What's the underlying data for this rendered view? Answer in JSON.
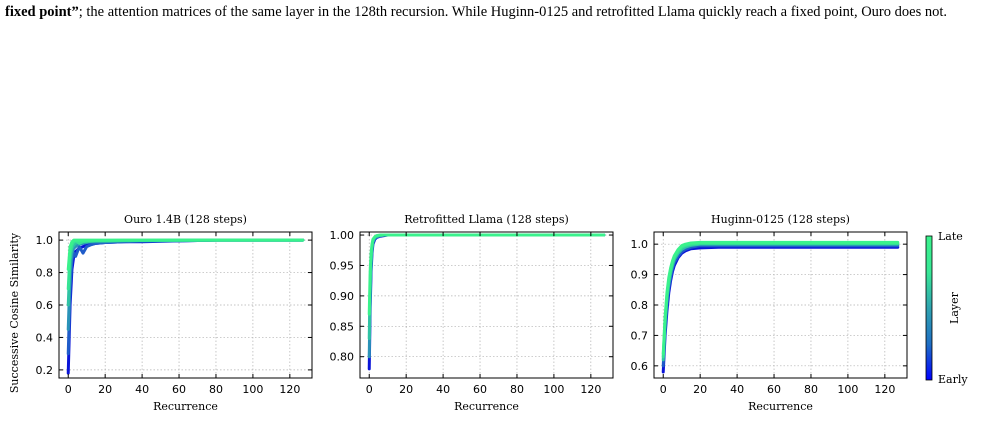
{
  "caption": {
    "bold_lead": "fixed point”",
    "text": "; the attention matrices of the same layer in the 128th recursion. While Huginn-0125 and retrofitted Llama quickly reach a fixed point, Ouro does not."
  },
  "chart_data": [
    {
      "type": "line",
      "title": "Ouro 1.4B (128 steps)",
      "xlabel": "Recurrence",
      "ylabel": "Successive Cosine Similarity",
      "xlim": [
        -5,
        132
      ],
      "ylim": [
        0.15,
        1.05
      ],
      "xticks": [
        0,
        20,
        40,
        60,
        80,
        100,
        120
      ],
      "yticks": [
        0.2,
        0.4,
        0.6,
        0.8,
        1.0
      ],
      "ytick_labels": [
        "0.2",
        "0.4",
        "0.6",
        "0.8",
        "1.0"
      ],
      "grid": true,
      "x": [
        0,
        1,
        2,
        3,
        4,
        5,
        6,
        8,
        10,
        12,
        15,
        20,
        30,
        40,
        60,
        80,
        100,
        127
      ],
      "series": [
        {
          "values": [
            0.18,
            0.6,
            0.82,
            0.9,
            0.93,
            0.94,
            0.95,
            0.96,
            0.97,
            0.975,
            0.98,
            0.985,
            0.99,
            0.99,
            0.995,
            1.0,
            1.0,
            1.0
          ]
        },
        {
          "values": [
            0.3,
            0.7,
            0.88,
            0.92,
            0.9,
            0.93,
            0.96,
            0.92,
            0.96,
            0.97,
            0.98,
            0.985,
            0.99,
            0.995,
            0.995,
            1.0,
            1.0,
            1.0
          ]
        },
        {
          "values": [
            0.45,
            0.8,
            0.92,
            0.95,
            0.96,
            0.97,
            0.975,
            0.98,
            0.985,
            0.99,
            0.99,
            0.99,
            0.995,
            0.995,
            0.998,
            1.0,
            1.0,
            1.0
          ]
        },
        {
          "values": [
            0.6,
            0.88,
            0.95,
            0.97,
            0.98,
            0.985,
            0.99,
            0.99,
            0.99,
            0.992,
            0.995,
            0.995,
            0.997,
            0.998,
            0.999,
            1.0,
            1.0,
            1.0
          ]
        },
        {
          "values": [
            0.7,
            0.92,
            0.97,
            0.99,
            0.995,
            0.99,
            0.98,
            0.99,
            0.995,
            0.995,
            0.997,
            0.998,
            0.999,
            0.999,
            1.0,
            1.0,
            1.0,
            1.0
          ]
        },
        {
          "values": [
            0.82,
            0.96,
            0.99,
            1.0,
            1.0,
            1.0,
            1.0,
            1.0,
            1.0,
            1.0,
            1.0,
            1.0,
            1.0,
            1.0,
            1.0,
            1.0,
            1.0,
            1.0
          ]
        }
      ]
    },
    {
      "type": "line",
      "title": "Retrofitted Llama (128 steps)",
      "xlabel": "Recurrence",
      "ylabel": "",
      "xlim": [
        -5,
        132
      ],
      "ylim": [
        0.765,
        1.005
      ],
      "xticks": [
        0,
        20,
        40,
        60,
        80,
        100,
        120
      ],
      "yticks": [
        0.8,
        0.85,
        0.9,
        0.95,
        1.0
      ],
      "ytick_labels": [
        "0.80",
        "0.85",
        "0.90",
        "0.95",
        "1.00"
      ],
      "grid": true,
      "x": [
        0,
        0.5,
        1,
        1.5,
        2,
        3,
        4,
        6,
        8,
        10,
        20,
        60,
        127
      ],
      "series": [
        {
          "values": [
            0.78,
            0.88,
            0.94,
            0.97,
            0.985,
            0.993,
            0.996,
            0.998,
            0.999,
            1.0,
            1.0,
            1.0,
            1.0
          ]
        },
        {
          "values": [
            0.8,
            0.9,
            0.95,
            0.975,
            0.988,
            0.995,
            0.997,
            0.999,
            1.0,
            1.0,
            1.0,
            1.0,
            1.0
          ]
        },
        {
          "values": [
            0.83,
            0.92,
            0.96,
            0.98,
            0.99,
            0.996,
            0.998,
            0.999,
            1.0,
            1.0,
            1.0,
            1.0,
            1.0
          ]
        },
        {
          "values": [
            0.87,
            0.94,
            0.97,
            0.985,
            0.993,
            0.997,
            0.999,
            1.0,
            1.0,
            1.0,
            1.0,
            1.0,
            1.0
          ]
        }
      ]
    },
    {
      "type": "line",
      "title": "Huginn-0125 (128 steps)",
      "xlabel": "Recurrence",
      "ylabel": "",
      "xlim": [
        -5,
        132
      ],
      "ylim": [
        0.56,
        1.04
      ],
      "xticks": [
        0,
        20,
        40,
        60,
        80,
        100,
        120
      ],
      "yticks": [
        0.6,
        0.7,
        0.8,
        0.9,
        1.0
      ],
      "ytick_labels": [
        "0.6",
        "0.7",
        "0.8",
        "0.9",
        "1.0"
      ],
      "grid": true,
      "x": [
        0,
        1,
        2,
        3,
        4,
        5,
        6,
        8,
        10,
        12,
        15,
        20,
        30,
        50,
        80,
        127
      ],
      "series": [
        {
          "values": [
            0.58,
            0.7,
            0.78,
            0.84,
            0.88,
            0.91,
            0.93,
            0.955,
            0.97,
            0.978,
            0.985,
            0.988,
            0.99,
            0.99,
            0.99,
            0.99
          ]
        },
        {
          "values": [
            0.6,
            0.72,
            0.8,
            0.855,
            0.89,
            0.92,
            0.94,
            0.96,
            0.975,
            0.983,
            0.99,
            0.995,
            0.995,
            0.995,
            0.995,
            0.995
          ]
        },
        {
          "values": [
            0.62,
            0.74,
            0.82,
            0.87,
            0.905,
            0.93,
            0.95,
            0.97,
            0.983,
            0.99,
            0.996,
            1.0,
            1.0,
            1.0,
            1.0,
            1.0
          ]
        },
        {
          "values": [
            0.63,
            0.75,
            0.83,
            0.88,
            0.915,
            0.94,
            0.957,
            0.977,
            0.99,
            0.996,
            1.0,
            1.003,
            1.003,
            1.003,
            1.003,
            1.003
          ]
        },
        {
          "values": [
            0.64,
            0.76,
            0.84,
            0.89,
            0.922,
            0.945,
            0.962,
            0.982,
            0.995,
            1.0,
            1.004,
            1.006,
            1.006,
            1.006,
            1.006,
            1.006
          ]
        }
      ]
    }
  ],
  "colorbar": {
    "label": "Layer",
    "top_label": "Late",
    "bottom_label": "Early",
    "gradient": [
      "#0000ff",
      "#1f6fc4",
      "#2fa3b0",
      "#38e896",
      "#3af28c"
    ]
  },
  "line_colors": [
    "#0a14d8",
    "#1f5cc9",
    "#2a93b8",
    "#2fc3a4",
    "#36e494",
    "#3af28c"
  ]
}
